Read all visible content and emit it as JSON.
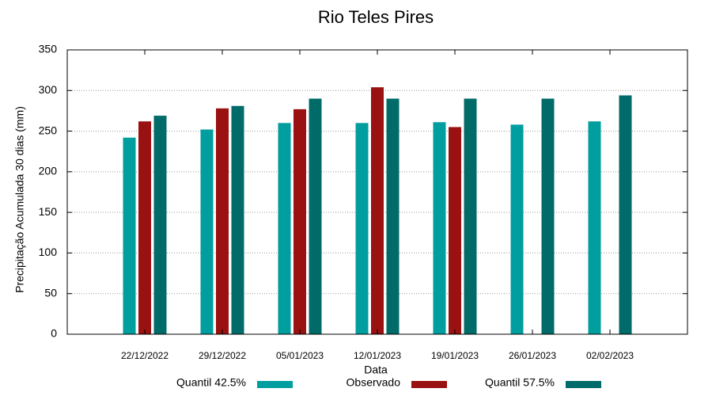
{
  "chart_data": {
    "type": "bar",
    "title": "Rio Teles Pires",
    "x_label": "Data",
    "y_label": "Precipitação Acumulada 30 dias (mm)",
    "categories": [
      "22/12/2022",
      "29/12/2022",
      "05/01/2023",
      "12/01/2023",
      "19/01/2023",
      "26/01/2023",
      "02/02/2023"
    ],
    "series": [
      {
        "name": "Quantil 42.5%",
        "color": "#009e9e",
        "values": [
          242,
          252,
          260,
          260,
          261,
          258,
          262
        ]
      },
      {
        "name": "Observado",
        "color": "#991111",
        "values": [
          262,
          278,
          277,
          304,
          255,
          null,
          null
        ]
      },
      {
        "name": "Quantil 57.5%",
        "color": "#006b68",
        "values": [
          269,
          281,
          290,
          290,
          290,
          290,
          294
        ]
      }
    ],
    "ylim": [
      0,
      350
    ],
    "yticks": [
      0,
      50,
      100,
      150,
      200,
      250,
      300,
      350
    ],
    "grid": true
  }
}
